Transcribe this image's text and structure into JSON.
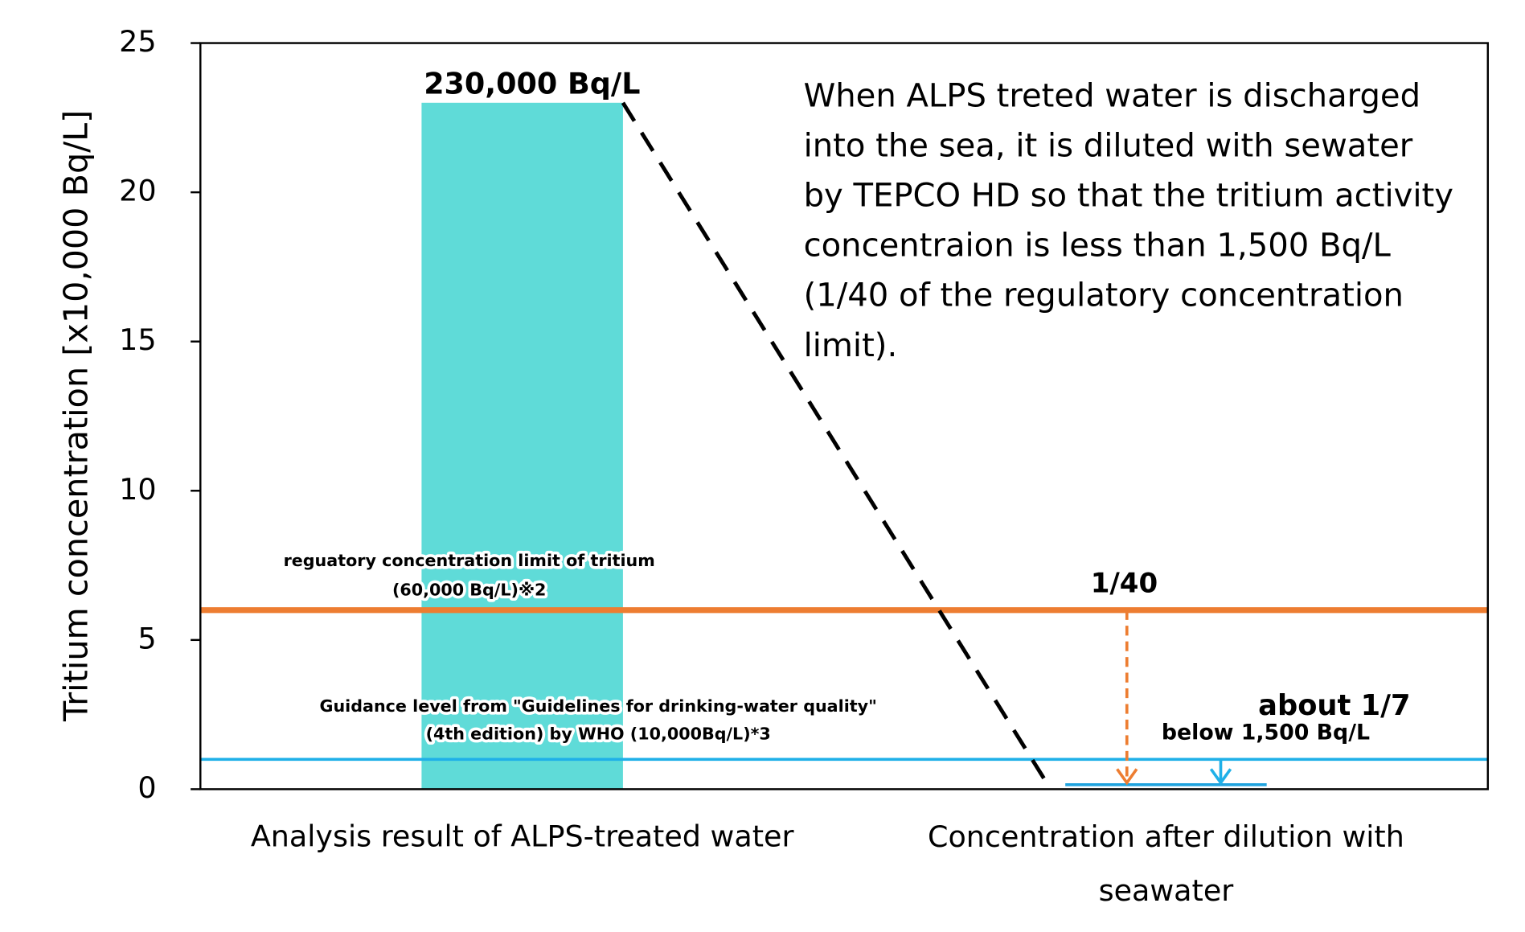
{
  "chart_data": {
    "type": "bar",
    "ylabel": "Tritium concentration [x10,000 Bq/L]",
    "categories": [
      "Analysis result of ALPS-treated water",
      "Concentration after dilution with\nseawater"
    ],
    "values": [
      23,
      0.15
    ],
    "value_labels": [
      "230,000 Bq/L",
      "below 1,500 Bq/L"
    ],
    "colors": [
      "#5fdbd8",
      "#1fa3df"
    ],
    "ylim": [
      0,
      25
    ],
    "yticks": [
      0,
      5,
      10,
      15,
      20,
      25
    ],
    "reference_lines": [
      {
        "value": 6,
        "color": "#ed7d31",
        "label": "reguatory concentration limit of tritium\n(60,000 Bq/L)※2"
      },
      {
        "value": 1,
        "color": "#1fb0e8",
        "label": "Guidance level from \"Guidelines for drinking-water quality\"\n(4th edition) by WHO (10,000Bq/L)*3"
      }
    ],
    "annotations": {
      "description": [
        "When ALPS treted water is discharged",
        "into the sea, it is diluted with sewater",
        "by TEPCO HD so that the tritium activity",
        "concentraion is less than 1,500 Bq/L",
        "(1/40 of the regulatory concentration",
        "limit)."
      ],
      "ratio_limit": "1/40",
      "ratio_who": "about 1/7"
    }
  }
}
